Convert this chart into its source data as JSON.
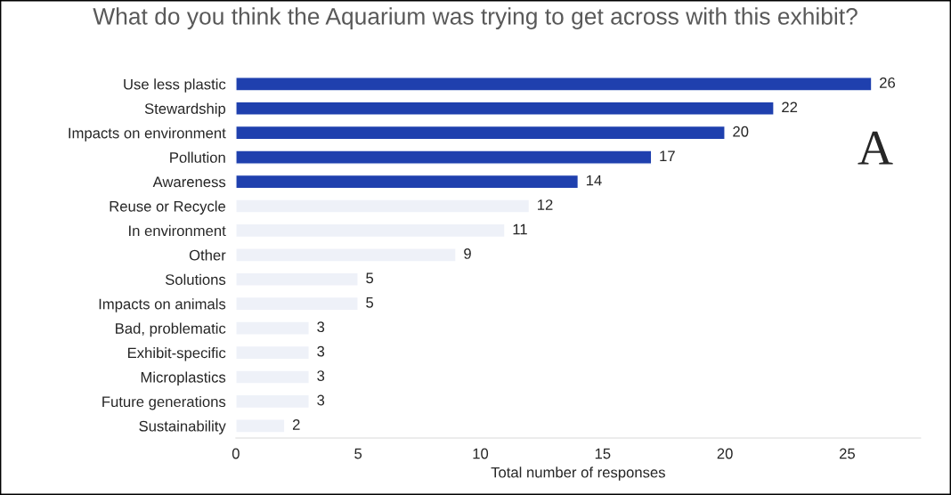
{
  "chart_data": {
    "type": "bar",
    "orientation": "horizontal",
    "title": "What do you think the Aquarium was trying to get across with this exhibit?",
    "xlabel": "Total number of responses",
    "categories": [
      "Use less plastic",
      "Stewardship",
      "Impacts on environment",
      "Pollution",
      "Awareness",
      "Reuse or Recycle",
      "In environment",
      "Other",
      "Solutions",
      "Impacts on animals",
      "Bad, problematic",
      "Exhibit-specific",
      "Microplastics",
      "Future generations",
      "Sustainability"
    ],
    "values": [
      26,
      22,
      20,
      17,
      14,
      12,
      11,
      9,
      5,
      5,
      3,
      3,
      3,
      3,
      2
    ],
    "colors": [
      "#1f40ae",
      "#1f40ae",
      "#1f40ae",
      "#1f40ae",
      "#1f40ae",
      "#eef1f8",
      "#eef1f8",
      "#eef1f8",
      "#eef1f8",
      "#eef1f8",
      "#eef1f8",
      "#eef1f8",
      "#eef1f8",
      "#eef1f8",
      "#eef1f8"
    ],
    "xlim": [
      0,
      28
    ],
    "xticks": [
      0,
      5,
      10,
      15,
      20,
      25
    ],
    "data_labels": true,
    "grid": false,
    "legend": false,
    "annotations": [
      "A"
    ]
  }
}
